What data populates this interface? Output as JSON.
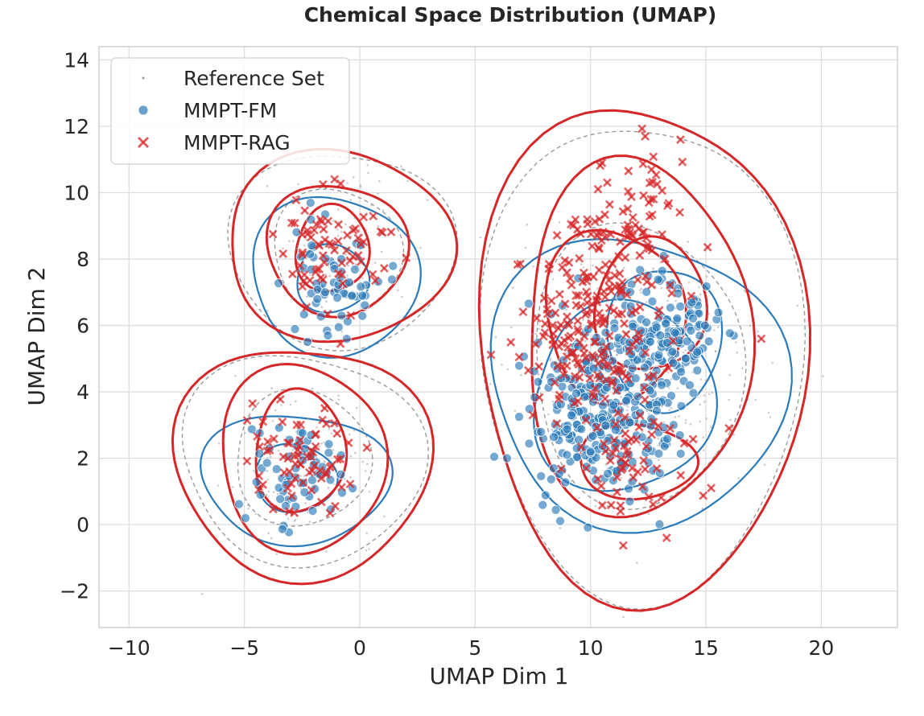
{
  "chart_data": {
    "type": "scatter",
    "title": "Chemical Space Distribution (UMAP)",
    "xlabel": "UMAP Dim 1",
    "ylabel": "UMAP Dim 2",
    "xlim": [
      -11.3,
      23.3
    ],
    "ylim": [
      -3.1,
      14.4
    ],
    "xticks": [
      -10,
      -5,
      0,
      5,
      10,
      15,
      20
    ],
    "xtick_labels": [
      "−10",
      "−5",
      "0",
      "5",
      "10",
      "15",
      "20"
    ],
    "yticks": [
      -2,
      0,
      2,
      4,
      6,
      8,
      10,
      12,
      14
    ],
    "ytick_labels": [
      "−2",
      "0",
      "2",
      "4",
      "6",
      "8",
      "10",
      "12",
      "14"
    ],
    "grid": true,
    "legend_position": "top-left",
    "legend": [
      "Reference Set",
      "MMPT-FM",
      "MMPT-RAG"
    ],
    "colors": {
      "reference": "#9a9a9a",
      "fm": "#2b7bba",
      "rag": "#d62728",
      "grid": "#dddddd",
      "axes": "#cfcfcf"
    },
    "series": [
      {
        "name": "Reference Set",
        "marker": "dot",
        "clusters": [
          {
            "center": [
              -1.0,
              8.2
            ],
            "count": 120
          },
          {
            "center": [
              -2.5,
              2.0
            ],
            "count": 120
          },
          {
            "center": [
              12.0,
              4.8
            ],
            "count": 380
          }
        ]
      },
      {
        "name": "MMPT-FM",
        "marker": "circle",
        "clusters": [
          {
            "center": [
              -1.2,
              7.4
            ],
            "count": 60
          },
          {
            "center": [
              -2.8,
              1.5
            ],
            "count": 60
          },
          {
            "center": [
              10.5,
              3.5
            ],
            "count": 320
          },
          {
            "center": [
              13.5,
              5.8
            ],
            "count": 120
          }
        ],
        "sample_points": [
          [
            -1.5,
            7.0
          ],
          [
            -0.8,
            8.0
          ],
          [
            -3.2,
            1.2
          ],
          [
            -2.0,
            1.8
          ],
          [
            10.0,
            2.2
          ],
          [
            11.0,
            3.6
          ],
          [
            12.5,
            7.5
          ],
          [
            14.3,
            4.2
          ],
          [
            13.6,
            3.0
          ]
        ]
      },
      {
        "name": "MMPT-RAG",
        "marker": "x",
        "clusters": [
          {
            "center": [
              -1.2,
              8.3
            ],
            "count": 70
          },
          {
            "center": [
              -2.6,
              2.2
            ],
            "count": 70
          },
          {
            "center": [
              10.2,
              6.0
            ],
            "count": 200
          },
          {
            "center": [
              12.0,
              9.5
            ],
            "count": 60
          },
          {
            "center": [
              12.0,
              2.0
            ],
            "count": 50
          }
        ],
        "sample_points": [
          [
            13.3,
            -0.4
          ],
          [
            16.0,
            2.9
          ],
          [
            17.4,
            5.6
          ],
          [
            13.9,
            11.6
          ],
          [
            7.5,
            3.3
          ],
          [
            11.3,
            0.4
          ]
        ]
      }
    ]
  }
}
